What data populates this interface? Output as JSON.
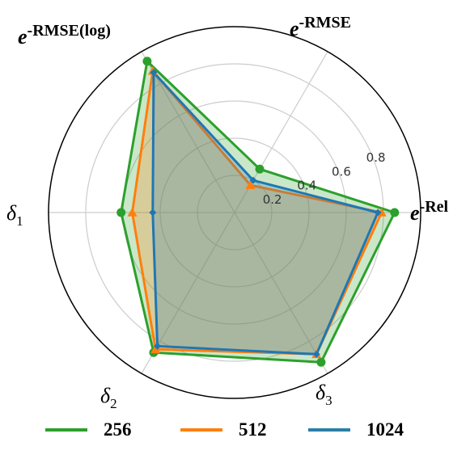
{
  "chart_data": {
    "type": "radar",
    "axes": [
      {
        "key": "e_rel",
        "exp": "-Rel",
        "prefix": "e"
      },
      {
        "key": "e_rmse",
        "exp": "-RMSE",
        "prefix": "e"
      },
      {
        "key": "e_rmse_log",
        "exp": "-RMSE(log)",
        "prefix": "e"
      },
      {
        "key": "delta1",
        "greek": "δ",
        "sub": "1"
      },
      {
        "key": "delta2",
        "greek": "δ",
        "sub": "2"
      },
      {
        "key": "delta3",
        "greek": "δ",
        "sub": "3"
      }
    ],
    "radial_ticks": [
      "0.2",
      "0.4",
      "0.6",
      "0.8"
    ],
    "radial_tick_values": [
      0.2,
      0.4,
      0.6,
      0.8
    ],
    "rmax": 1.0,
    "grid": true,
    "legend_position": "bottom",
    "series": [
      {
        "name": "256",
        "color": "#2ca02c",
        "values": [
          0.86,
          0.27,
          0.94,
          0.61,
          0.87,
          0.93
        ],
        "marker": "circle"
      },
      {
        "name": "512",
        "color": "#ff7f0e",
        "values": [
          0.79,
          0.17,
          0.88,
          0.55,
          0.85,
          0.88
        ],
        "marker": "triangle"
      },
      {
        "name": "1024",
        "color": "#1f77b4",
        "values": [
          0.77,
          0.2,
          0.87,
          0.44,
          0.83,
          0.88
        ],
        "marker": "diamond"
      }
    ]
  }
}
